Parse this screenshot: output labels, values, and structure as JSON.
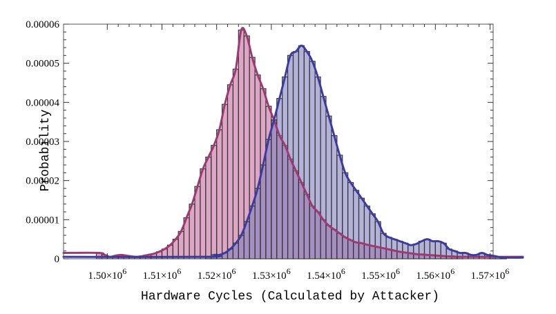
{
  "chart_data": {
    "type": "bar",
    "title": "",
    "xlabel": "Hardware Cycles (Calculated by Attacker)",
    "ylabel": "Probability",
    "xlim": [
      1492000,
      1576000
    ],
    "ylim": [
      0,
      6e-05
    ],
    "grid": false,
    "legend": "none",
    "bin_width": 1000,
    "x_ticks": [
      1500000,
      1510000,
      1520000,
      1530000,
      1540000,
      1550000,
      1560000,
      1570000
    ],
    "x_tick_labels": [
      {
        "mantissa": "1.50",
        "exponent": "6"
      },
      {
        "mantissa": "1.51",
        "exponent": "6"
      },
      {
        "mantissa": "1.52",
        "exponent": "6"
      },
      {
        "mantissa": "1.53",
        "exponent": "6"
      },
      {
        "mantissa": "1.54",
        "exponent": "6"
      },
      {
        "mantissa": "1.55",
        "exponent": "6"
      },
      {
        "mantissa": "1.56",
        "exponent": "6"
      },
      {
        "mantissa": "1.57",
        "exponent": "6"
      }
    ],
    "times_symbol": "×",
    "y_ticks": [
      0,
      1e-05,
      2e-05,
      3e-05,
      4e-05,
      5e-05,
      6e-05
    ],
    "y_tick_labels": [
      "0",
      "0.00001",
      "0.00002",
      "0.00003",
      "0.00004",
      "0.00005",
      "0.00006"
    ],
    "series": [
      {
        "color": "#c46a9c",
        "curve_color": "#9e3a72",
        "bin_starts": [
          1498000,
          1499000,
          1500000,
          1501000,
          1502000,
          1503000,
          1504000,
          1505000,
          1506000,
          1507000,
          1508000,
          1509000,
          1510000,
          1511000,
          1512000,
          1513000,
          1514000,
          1515000,
          1516000,
          1517000,
          1518000,
          1519000,
          1520000,
          1521000,
          1522000,
          1523000,
          1524000,
          1525000,
          1526000,
          1527000,
          1528000,
          1529000,
          1530000,
          1531000,
          1532000,
          1533000,
          1534000,
          1535000,
          1536000,
          1537000,
          1538000,
          1539000,
          1540000,
          1541000,
          1542000,
          1543000,
          1544000,
          1545000,
          1546000,
          1547000,
          1548000,
          1549000,
          1550000,
          1551000,
          1552000,
          1553000,
          1554000,
          1555000,
          1556000,
          1557000,
          1558000,
          1559000,
          1560000,
          1561000,
          1562000,
          1563000,
          1564000
        ],
        "values": [
          1.5e-06,
          1e-06,
          5e-07,
          8e-07,
          1e-06,
          8e-07,
          6e-07,
          5e-07,
          7e-07,
          1e-06,
          1.3e-06,
          1.8e-06,
          2.5e-06,
          3.5e-06,
          5e-06,
          7e-06,
          1.05e-05,
          1.4e-05,
          1.85e-05,
          2.3e-05,
          2.6e-05,
          2.9e-05,
          3.3e-05,
          3.95e-05,
          4.45e-05,
          4.85e-05,
          5.85e-05,
          5.7e-05,
          5.15e-05,
          4.7e-05,
          4.35e-05,
          3.9e-05,
          3.55e-05,
          3.15e-05,
          2.9e-05,
          2.55e-05,
          2.25e-05,
          1.95e-05,
          1.65e-05,
          1.35e-05,
          1.2e-05,
          1e-05,
          8.5e-06,
          7.5e-06,
          6.5e-06,
          5.5e-06,
          4.8e-06,
          4.2e-06,
          4e-06,
          3.6e-06,
          3.3e-06,
          3e-06,
          2.7e-06,
          2.4e-06,
          2.1e-06,
          1.8e-06,
          1.6e-06,
          1.4e-06,
          1.2e-06,
          1.1e-06,
          1e-06,
          9e-07,
          8e-07,
          7e-07,
          6e-07,
          6e-07,
          5e-07
        ]
      },
      {
        "color": "#8080c0",
        "curve_color": "#3c3ca0",
        "bin_starts": [
          1518000,
          1519000,
          1520000,
          1521000,
          1522000,
          1523000,
          1524000,
          1525000,
          1526000,
          1527000,
          1528000,
          1529000,
          1530000,
          1531000,
          1532000,
          1533000,
          1534000,
          1535000,
          1536000,
          1537000,
          1538000,
          1539000,
          1540000,
          1541000,
          1542000,
          1543000,
          1544000,
          1545000,
          1546000,
          1547000,
          1548000,
          1549000,
          1550000,
          1551000,
          1552000,
          1553000,
          1554000,
          1555000,
          1556000,
          1557000,
          1558000,
          1559000,
          1560000,
          1561000,
          1562000,
          1563000,
          1564000,
          1565000,
          1566000,
          1567000,
          1568000,
          1569000,
          1570000,
          1571000,
          1572000
        ],
        "values": [
          5e-07,
          1e-06,
          1e-06,
          1.5e-06,
          2.5e-06,
          4e-06,
          6e-06,
          9.5e-06,
          1.35e-05,
          1.8e-05,
          2.4e-05,
          3.05e-05,
          3.55e-05,
          4.1e-05,
          4.65e-05,
          5.2e-05,
          5.3e-05,
          5.45e-05,
          5.3e-05,
          5.05e-05,
          4.65e-05,
          4.15e-05,
          3.65e-05,
          3.15e-05,
          2.65e-05,
          2.2e-05,
          1.95e-05,
          1.75e-05,
          1.55e-05,
          1.35e-05,
          1.15e-05,
          9.5e-06,
          6.5e-06,
          5.5e-06,
          5e-06,
          4.5e-06,
          4e-06,
          3.5e-06,
          3.8e-06,
          4.5e-06,
          5e-06,
          4.5e-06,
          4.5e-06,
          4e-06,
          2.5e-06,
          2e-06,
          1.5e-06,
          1.5e-06,
          1e-06,
          1e-06,
          1.5e-06,
          1e-06,
          8e-07,
          5e-07,
          3e-07
        ]
      }
    ]
  }
}
